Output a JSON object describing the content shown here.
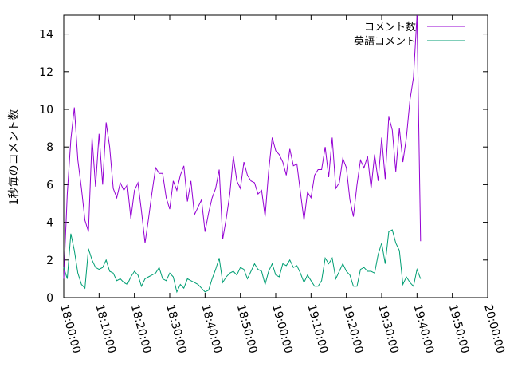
{
  "chart_data": {
    "type": "line",
    "title": "",
    "xlabel": "",
    "ylabel": "1秒毎のコメント数",
    "xlim": [
      "18:00:00",
      "20:00:00"
    ],
    "ylim": [
      0,
      15
    ],
    "x_ticks": [
      "18:00:00",
      "18:10:00",
      "18:20:00",
      "18:30:00",
      "18:40:00",
      "18:50:00",
      "19:00:00",
      "19:10:00",
      "19:20:00",
      "19:30:00",
      "19:40:00",
      "19:50:00",
      "20:00:00"
    ],
    "y_ticks": [
      0,
      2,
      4,
      6,
      8,
      10,
      12,
      14
    ],
    "grid": false,
    "legend": "top-right",
    "x_interval_seconds": 60,
    "x_start": "18:00:00",
    "series": [
      {
        "name": "コメント数",
        "color": "#9400d3",
        "values": [
          1.0,
          5.5,
          8.4,
          10.1,
          7.3,
          5.8,
          4.1,
          3.5,
          8.5,
          5.9,
          8.7,
          6.0,
          9.3,
          8.0,
          5.8,
          5.3,
          6.1,
          5.7,
          6.0,
          4.2,
          5.7,
          6.1,
          4.6,
          2.9,
          4.2,
          5.6,
          6.9,
          6.6,
          6.6,
          5.3,
          4.7,
          6.2,
          5.7,
          6.5,
          7.0,
          5.1,
          6.2,
          4.4,
          4.8,
          5.2,
          3.5,
          4.5,
          5.3,
          5.8,
          6.8,
          3.1,
          4.2,
          5.5,
          7.5,
          6.2,
          5.8,
          7.2,
          6.5,
          6.2,
          6.1,
          5.5,
          5.7,
          4.3,
          6.7,
          8.5,
          7.8,
          7.6,
          7.2,
          6.5,
          7.9,
          7.0,
          7.1,
          5.6,
          4.1,
          5.6,
          5.3,
          6.5,
          6.8,
          6.8,
          8.0,
          6.4,
          8.5,
          5.8,
          6.1,
          7.4,
          6.9,
          5.2,
          4.3,
          6.0,
          7.3,
          6.9,
          7.5,
          5.8,
          7.6,
          6.2,
          8.5,
          6.3,
          9.6,
          8.9,
          6.7,
          9.0,
          7.2,
          8.5,
          10.5,
          11.7,
          15.0,
          3.0
        ]
      },
      {
        "name": "英語コメント",
        "color": "#009e73",
        "values": [
          1.6,
          1.0,
          3.4,
          2.5,
          1.3,
          0.7,
          0.5,
          2.6,
          2.0,
          1.6,
          1.5,
          1.6,
          2.0,
          1.4,
          1.3,
          0.9,
          1.0,
          0.8,
          0.7,
          1.1,
          1.4,
          1.2,
          0.6,
          1.0,
          1.1,
          1.2,
          1.3,
          1.6,
          1.0,
          0.9,
          1.3,
          1.1,
          0.3,
          0.7,
          0.5,
          1.0,
          0.9,
          0.8,
          0.7,
          0.5,
          0.3,
          0.4,
          1.0,
          1.5,
          2.1,
          0.8,
          1.1,
          1.3,
          1.4,
          1.2,
          1.6,
          1.5,
          1.0,
          1.4,
          1.8,
          1.5,
          1.4,
          0.7,
          1.4,
          1.8,
          1.2,
          1.1,
          1.8,
          1.7,
          2.0,
          1.6,
          1.7,
          1.3,
          0.8,
          1.2,
          0.9,
          0.6,
          0.6,
          0.9,
          2.1,
          1.8,
          2.1,
          1.0,
          1.4,
          1.8,
          1.4,
          1.2,
          0.6,
          0.6,
          1.5,
          1.6,
          1.4,
          1.4,
          1.3,
          2.3,
          2.9,
          1.8,
          3.5,
          3.6,
          2.9,
          2.5,
          0.7,
          1.1,
          0.8,
          0.6,
          1.5,
          1.0
        ]
      }
    ]
  }
}
